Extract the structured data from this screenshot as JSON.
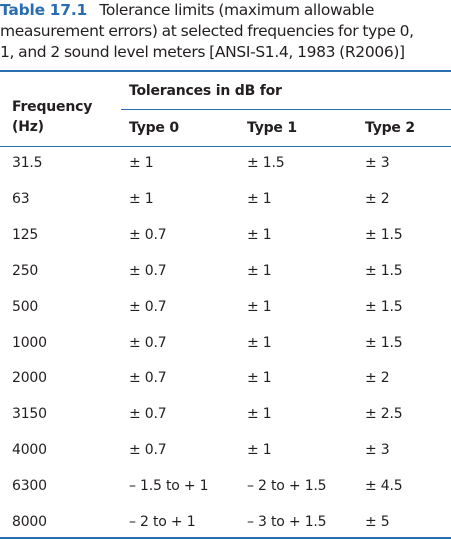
{
  "caption": {
    "number": "Table 17.1",
    "lines": [
      "Tolerance limits (maximum allowable",
      "measurement errors) at selected frequencies for type 0,",
      "1, and 2 sound level meters [ANSI-S1.4, 1983 (R2006)]"
    ]
  },
  "header": {
    "frequency_line1": "Frequency",
    "frequency_line2": "(Hz)",
    "group": "Tolerances in dB for",
    "columns": [
      "Type 0",
      "Type 1",
      "Type 2"
    ]
  },
  "rows": [
    {
      "freq": "31.5",
      "t0": "± 1",
      "t1": "± 1.5",
      "t2": "± 3"
    },
    {
      "freq": "63",
      "t0": "± 1",
      "t1": "± 1",
      "t2": "± 2"
    },
    {
      "freq": "125",
      "t0": "± 0.7",
      "t1": "± 1",
      "t2": "± 1.5"
    },
    {
      "freq": "250",
      "t0": "± 0.7",
      "t1": "± 1",
      "t2": "± 1.5"
    },
    {
      "freq": "500",
      "t0": "± 0.7",
      "t1": "± 1",
      "t2": "± 1.5"
    },
    {
      "freq": "1000",
      "t0": "± 0.7",
      "t1": "± 1",
      "t2": "± 1.5"
    },
    {
      "freq": "2000",
      "t0": "± 0.7",
      "t1": "± 1",
      "t2": "± 2"
    },
    {
      "freq": "3150",
      "t0": "± 0.7",
      "t1": "± 1",
      "t2": "± 2.5"
    },
    {
      "freq": "4000",
      "t0": "± 0.7",
      "t1": "± 1",
      "t2": "± 3"
    },
    {
      "freq": "6300",
      "t0": "– 1.5 to + 1",
      "t1": "– 2 to + 1.5",
      "t2": "± 4.5"
    },
    {
      "freq": "8000",
      "t0": "– 2 to + 1",
      "t1": "– 3 to + 1.5",
      "t2": "± 5"
    }
  ],
  "colors": {
    "accent": "#2a6db0",
    "text": "#231f20"
  }
}
